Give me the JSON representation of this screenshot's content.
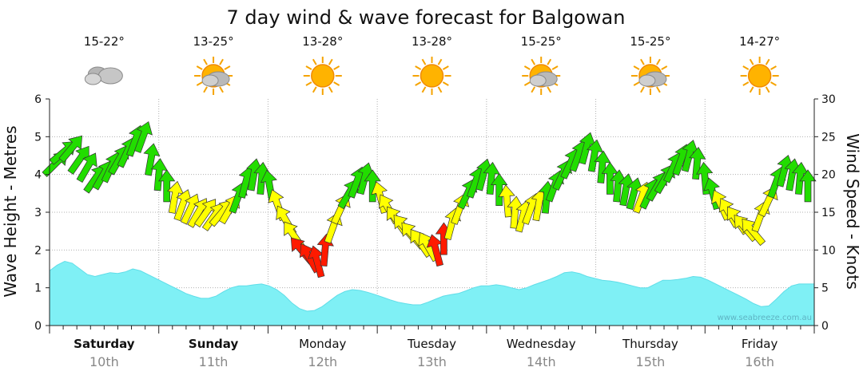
{
  "chart_data": {
    "type": "area+wind-arrows",
    "title": "7 day wind & wave forecast for Balgowan",
    "ylabel_left": "Wave Height - Metres",
    "ylabel_right": "Wind Speed - Knots",
    "ylim_left": [
      0,
      6
    ],
    "ylim_right": [
      0,
      30
    ],
    "yticks_left": [
      "0",
      "1",
      "2",
      "3",
      "4",
      "5",
      "6"
    ],
    "yticks_right": [
      "0",
      "5",
      "10",
      "15",
      "20",
      "25",
      "30"
    ],
    "watermark": "www.seabreeze.com.au",
    "days": [
      {
        "name": "Saturday",
        "date": "10th",
        "temp": "15-22°",
        "icon": "cloudy-icon",
        "bold": true
      },
      {
        "name": "Sunday",
        "date": "11th",
        "temp": "13-25°",
        "icon": "sun-cloud-icon",
        "bold": true
      },
      {
        "name": "Monday",
        "date": "12th",
        "temp": "13-28°",
        "icon": "sun-icon",
        "bold": false
      },
      {
        "name": "Tuesday",
        "date": "13th",
        "temp": "13-28°",
        "icon": "sun-icon",
        "bold": false
      },
      {
        "name": "Wednesday",
        "date": "14th",
        "temp": "15-25°",
        "icon": "sun-cloud-icon",
        "bold": false
      },
      {
        "name": "Thursday",
        "date": "15th",
        "temp": "15-25°",
        "icon": "sun-cloud-icon",
        "bold": false
      },
      {
        "name": "Friday",
        "date": "16th",
        "temp": "14-27°",
        "icon": "sun-icon",
        "bold": false
      }
    ],
    "wave_height_m": [
      1.45,
      1.6,
      1.7,
      1.65,
      1.5,
      1.35,
      1.3,
      1.35,
      1.4,
      1.38,
      1.42,
      1.5,
      1.45,
      1.35,
      1.25,
      1.15,
      1.05,
      0.95,
      0.85,
      0.78,
      0.72,
      0.72,
      0.78,
      0.9,
      1.0,
      1.05,
      1.05,
      1.08,
      1.1,
      1.05,
      0.95,
      0.8,
      0.6,
      0.45,
      0.38,
      0.4,
      0.5,
      0.65,
      0.8,
      0.9,
      0.95,
      0.93,
      0.88,
      0.82,
      0.75,
      0.68,
      0.62,
      0.58,
      0.55,
      0.55,
      0.62,
      0.7,
      0.78,
      0.82,
      0.85,
      0.92,
      1.0,
      1.05,
      1.05,
      1.08,
      1.05,
      1.0,
      0.95,
      1.0,
      1.08,
      1.15,
      1.22,
      1.3,
      1.4,
      1.42,
      1.38,
      1.3,
      1.25,
      1.2,
      1.18,
      1.15,
      1.1,
      1.05,
      1.0,
      1.0,
      1.1,
      1.2,
      1.2,
      1.22,
      1.25,
      1.3,
      1.28,
      1.2,
      1.1,
      1.0,
      0.9,
      0.8,
      0.7,
      0.58,
      0.5,
      0.52,
      0.7,
      0.9,
      1.05,
      1.1,
      1.1,
      1.1
    ],
    "wind": [
      {
        "t": 0.0,
        "kn": 21.5,
        "dir": 225,
        "cat": "strong"
      },
      {
        "t": 0.15,
        "kn": 23.0,
        "dir": 230,
        "cat": "strong"
      },
      {
        "t": 0.3,
        "kn": 23.5,
        "dir": 220,
        "cat": "strong"
      },
      {
        "t": 0.45,
        "kn": 22.0,
        "dir": 215,
        "cat": "strong"
      },
      {
        "t": 0.6,
        "kn": 21.0,
        "dir": 210,
        "cat": "strong"
      },
      {
        "t": 0.75,
        "kn": 19.5,
        "dir": 215,
        "cat": "strong"
      },
      {
        "t": 0.9,
        "kn": 20.0,
        "dir": 210,
        "cat": "strong"
      },
      {
        "t": 1.05,
        "kn": 21.0,
        "dir": 205,
        "cat": "strong"
      },
      {
        "t": 1.2,
        "kn": 22.0,
        "dir": 210,
        "cat": "strong"
      },
      {
        "t": 1.35,
        "kn": 23.0,
        "dir": 205,
        "cat": "strong"
      },
      {
        "t": 1.5,
        "kn": 24.5,
        "dir": 200,
        "cat": "strong"
      },
      {
        "t": 1.65,
        "kn": 25.0,
        "dir": 200,
        "cat": "strong"
      },
      {
        "t": 1.8,
        "kn": 22.0,
        "dir": 190,
        "cat": "strong"
      },
      {
        "t": 1.95,
        "kn": 20.0,
        "dir": 185,
        "cat": "strong"
      },
      {
        "t": 2.1,
        "kn": 18.5,
        "dir": 180,
        "cat": "strong"
      },
      {
        "t": 2.25,
        "kn": 17.0,
        "dir": 190,
        "cat": "moderate"
      },
      {
        "t": 2.4,
        "kn": 16.0,
        "dir": 200,
        "cat": "moderate"
      },
      {
        "t": 2.55,
        "kn": 15.5,
        "dir": 205,
        "cat": "moderate"
      },
      {
        "t": 2.7,
        "kn": 15.0,
        "dir": 210,
        "cat": "moderate"
      },
      {
        "t": 2.85,
        "kn": 15.0,
        "dir": 215,
        "cat": "moderate"
      },
      {
        "t": 3.0,
        "kn": 14.5,
        "dir": 215,
        "cat": "moderate"
      },
      {
        "t": 3.15,
        "kn": 15.0,
        "dir": 220,
        "cat": "moderate"
      },
      {
        "t": 3.3,
        "kn": 15.5,
        "dir": 210,
        "cat": "moderate"
      },
      {
        "t": 3.45,
        "kn": 17.0,
        "dir": 200,
        "cat": "strong"
      },
      {
        "t": 3.6,
        "kn": 19.0,
        "dir": 195,
        "cat": "strong"
      },
      {
        "t": 3.75,
        "kn": 20.0,
        "dir": 190,
        "cat": "strong"
      },
      {
        "t": 3.9,
        "kn": 19.5,
        "dir": 185,
        "cat": "strong"
      },
      {
        "t": 4.05,
        "kn": 18.5,
        "dir": 170,
        "cat": "strong"
      },
      {
        "t": 4.2,
        "kn": 16.0,
        "dir": 160,
        "cat": "moderate"
      },
      {
        "t": 4.35,
        "kn": 14.0,
        "dir": 150,
        "cat": "moderate"
      },
      {
        "t": 4.5,
        "kn": 12.0,
        "dir": 145,
        "cat": "moderate"
      },
      {
        "t": 4.65,
        "kn": 10.0,
        "dir": 140,
        "cat": "light"
      },
      {
        "t": 4.8,
        "kn": 9.0,
        "dir": 150,
        "cat": "light"
      },
      {
        "t": 4.95,
        "kn": 8.5,
        "dir": 165,
        "cat": "light"
      },
      {
        "t": 5.1,
        "kn": 10.0,
        "dir": 185,
        "cat": "light"
      },
      {
        "t": 5.25,
        "kn": 13.0,
        "dir": 200,
        "cat": "moderate"
      },
      {
        "t": 5.4,
        "kn": 15.5,
        "dir": 205,
        "cat": "moderate"
      },
      {
        "t": 5.55,
        "kn": 17.5,
        "dir": 210,
        "cat": "strong"
      },
      {
        "t": 5.7,
        "kn": 19.0,
        "dir": 200,
        "cat": "strong"
      },
      {
        "t": 5.85,
        "kn": 19.5,
        "dir": 195,
        "cat": "strong"
      },
      {
        "t": 6.0,
        "kn": 18.5,
        "dir": 180,
        "cat": "strong"
      },
      {
        "t": 6.15,
        "kn": 17.0,
        "dir": 165,
        "cat": "moderate"
      },
      {
        "t": 6.3,
        "kn": 15.5,
        "dir": 150,
        "cat": "moderate"
      },
      {
        "t": 6.45,
        "kn": 14.0,
        "dir": 145,
        "cat": "moderate"
      },
      {
        "t": 6.6,
        "kn": 13.0,
        "dir": 140,
        "cat": "moderate"
      },
      {
        "t": 6.75,
        "kn": 12.0,
        "dir": 140,
        "cat": "moderate"
      },
      {
        "t": 6.9,
        "kn": 11.0,
        "dir": 145,
        "cat": "moderate"
      },
      {
        "t": 7.05,
        "kn": 10.5,
        "dir": 150,
        "cat": "moderate"
      },
      {
        "t": 7.2,
        "kn": 10.0,
        "dir": 165,
        "cat": "light"
      },
      {
        "t": 7.35,
        "kn": 11.5,
        "dir": 180,
        "cat": "light"
      },
      {
        "t": 7.5,
        "kn": 13.5,
        "dir": 195,
        "cat": "moderate"
      },
      {
        "t": 7.65,
        "kn": 15.5,
        "dir": 200,
        "cat": "moderate"
      },
      {
        "t": 7.8,
        "kn": 17.5,
        "dir": 205,
        "cat": "strong"
      },
      {
        "t": 7.95,
        "kn": 19.0,
        "dir": 200,
        "cat": "strong"
      },
      {
        "t": 8.1,
        "kn": 20.0,
        "dir": 195,
        "cat": "strong"
      },
      {
        "t": 8.25,
        "kn": 19.5,
        "dir": 185,
        "cat": "strong"
      },
      {
        "t": 8.4,
        "kn": 18.0,
        "dir": 180,
        "cat": "strong"
      },
      {
        "t": 8.55,
        "kn": 16.5,
        "dir": 175,
        "cat": "moderate"
      },
      {
        "t": 8.7,
        "kn": 15.0,
        "dir": 185,
        "cat": "moderate"
      },
      {
        "t": 8.85,
        "kn": 14.5,
        "dir": 195,
        "cat": "moderate"
      },
      {
        "t": 9.0,
        "kn": 15.5,
        "dir": 200,
        "cat": "moderate"
      },
      {
        "t": 9.15,
        "kn": 16.0,
        "dir": 190,
        "cat": "moderate"
      },
      {
        "t": 9.3,
        "kn": 17.0,
        "dir": 185,
        "cat": "strong"
      },
      {
        "t": 9.45,
        "kn": 18.5,
        "dir": 200,
        "cat": "strong"
      },
      {
        "t": 9.6,
        "kn": 20.0,
        "dir": 205,
        "cat": "strong"
      },
      {
        "t": 9.75,
        "kn": 21.5,
        "dir": 205,
        "cat": "strong"
      },
      {
        "t": 9.9,
        "kn": 22.5,
        "dir": 200,
        "cat": "strong"
      },
      {
        "t": 10.05,
        "kn": 23.5,
        "dir": 195,
        "cat": "strong"
      },
      {
        "t": 10.2,
        "kn": 22.5,
        "dir": 190,
        "cat": "strong"
      },
      {
        "t": 10.35,
        "kn": 21.0,
        "dir": 185,
        "cat": "strong"
      },
      {
        "t": 10.5,
        "kn": 19.5,
        "dir": 180,
        "cat": "strong"
      },
      {
        "t": 10.65,
        "kn": 18.5,
        "dir": 185,
        "cat": "strong"
      },
      {
        "t": 10.8,
        "kn": 18.0,
        "dir": 190,
        "cat": "strong"
      },
      {
        "t": 10.95,
        "kn": 17.5,
        "dir": 195,
        "cat": "strong"
      },
      {
        "t": 11.1,
        "kn": 17.0,
        "dir": 200,
        "cat": "moderate"
      },
      {
        "t": 11.25,
        "kn": 17.5,
        "dir": 205,
        "cat": "strong"
      },
      {
        "t": 11.4,
        "kn": 18.5,
        "dir": 210,
        "cat": "strong"
      },
      {
        "t": 11.55,
        "kn": 19.5,
        "dir": 210,
        "cat": "strong"
      },
      {
        "t": 11.7,
        "kn": 21.0,
        "dir": 205,
        "cat": "strong"
      },
      {
        "t": 11.85,
        "kn": 22.0,
        "dir": 200,
        "cat": "strong"
      },
      {
        "t": 12.0,
        "kn": 22.5,
        "dir": 195,
        "cat": "strong"
      },
      {
        "t": 12.15,
        "kn": 21.5,
        "dir": 185,
        "cat": "strong"
      },
      {
        "t": 12.3,
        "kn": 19.5,
        "dir": 175,
        "cat": "strong"
      },
      {
        "t": 12.45,
        "kn": 17.5,
        "dir": 165,
        "cat": "strong"
      },
      {
        "t": 12.6,
        "kn": 16.0,
        "dir": 155,
        "cat": "moderate"
      },
      {
        "t": 12.75,
        "kn": 15.0,
        "dir": 150,
        "cat": "moderate"
      },
      {
        "t": 12.9,
        "kn": 14.0,
        "dir": 145,
        "cat": "moderate"
      },
      {
        "t": 13.05,
        "kn": 13.0,
        "dir": 140,
        "cat": "moderate"
      },
      {
        "t": 13.2,
        "kn": 12.5,
        "dir": 140,
        "cat": "moderate"
      },
      {
        "t": 13.35,
        "kn": 14.5,
        "dir": 200,
        "cat": "moderate"
      },
      {
        "t": 13.5,
        "kn": 16.5,
        "dir": 205,
        "cat": "moderate"
      },
      {
        "t": 13.65,
        "kn": 19.0,
        "dir": 200,
        "cat": "strong"
      },
      {
        "t": 13.8,
        "kn": 20.5,
        "dir": 195,
        "cat": "strong"
      },
      {
        "t": 13.95,
        "kn": 20.0,
        "dir": 190,
        "cat": "strong"
      },
      {
        "t": 14.1,
        "kn": 19.5,
        "dir": 185,
        "cat": "strong"
      },
      {
        "t": 14.25,
        "kn": 18.5,
        "dir": 180,
        "cat": "strong"
      }
    ]
  }
}
